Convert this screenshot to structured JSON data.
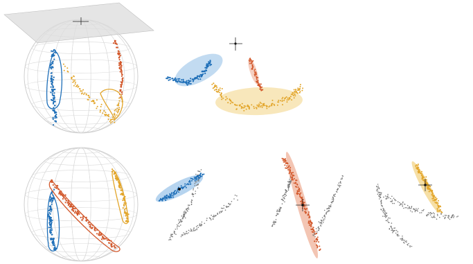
{
  "figure": {
    "colors": {
      "blue": "#1f6fb8",
      "blue_fill": "#8fbde6",
      "orange": "#d2572a",
      "orange_fill": "#efb19a",
      "yellow": "#e2a52a",
      "yellow_fill": "#f4d78e",
      "gray": "#7a7a7a",
      "grid": "#d9d9d9",
      "plane": "#e4e4e4",
      "marker": "#111111"
    },
    "panels": [
      {
        "id": "sphere-top",
        "kind": "sphere-with-plane"
      },
      {
        "id": "projection-top",
        "kind": "projected-clusters"
      },
      {
        "id": "sphere-bottom",
        "kind": "sphere"
      },
      {
        "id": "cluster-blue",
        "kind": "single-cluster",
        "highlight": "blue"
      },
      {
        "id": "cluster-orange",
        "kind": "single-cluster",
        "highlight": "orange"
      },
      {
        "id": "cluster-yellow",
        "kind": "single-cluster",
        "highlight": "yellow"
      }
    ]
  }
}
